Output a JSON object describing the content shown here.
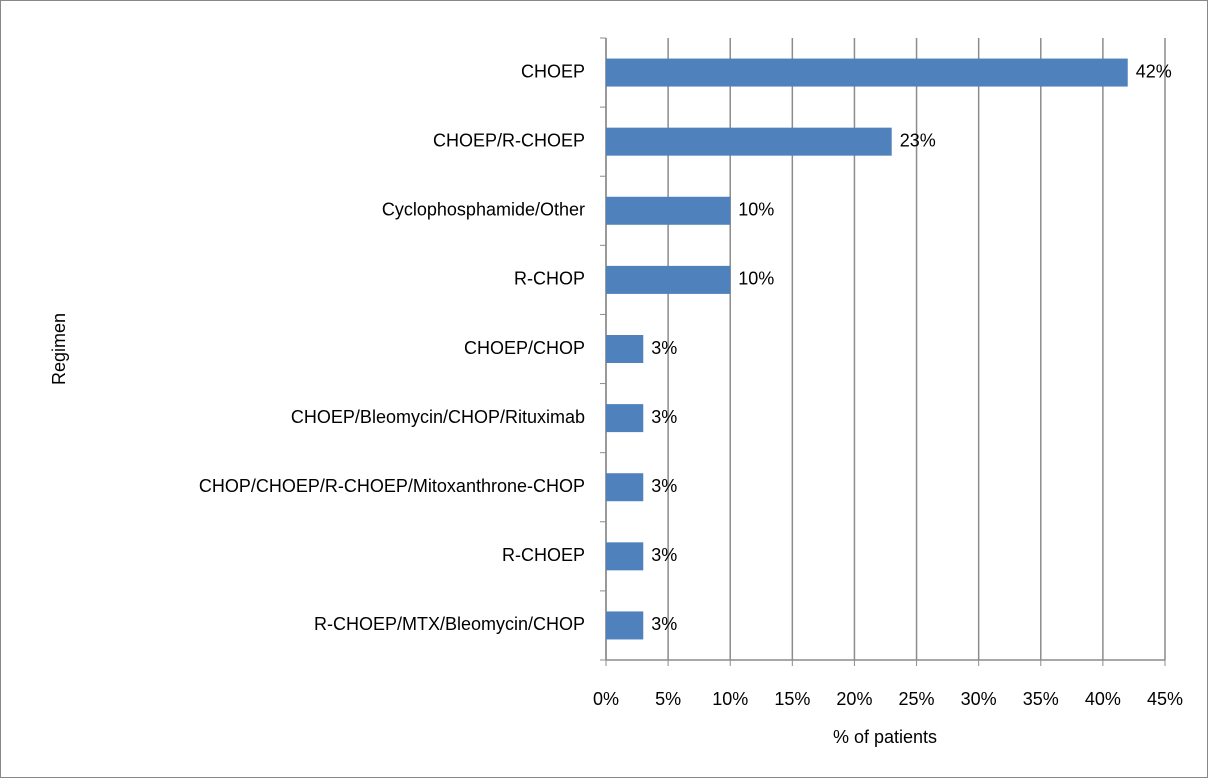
{
  "chart_data": {
    "type": "bar",
    "orientation": "horizontal",
    "categories": [
      "CHOEP",
      "CHOEP/R-CHOEP",
      "Cyclophosphamide/Other",
      "R-CHOP",
      "CHOEP/CHOP",
      "CHOEP/Bleomycin/CHOP/Rituximab",
      "CHOP/CHOEP/R-CHOEP/Mitoxanthrone-CHOP",
      "R-CHOEP",
      "R-CHOEP/MTX/Bleomycin/CHOP"
    ],
    "values": [
      42,
      23,
      10,
      10,
      3,
      3,
      3,
      3,
      3
    ],
    "value_labels": [
      "42%",
      "23%",
      "10%",
      "10%",
      "3%",
      "3%",
      "3%",
      "3%",
      "3%"
    ],
    "color": "#4f81bd",
    "xlim": [
      0,
      45
    ],
    "xticks": [
      {
        "value": 0,
        "label": "0%"
      },
      {
        "value": 5,
        "label": "5%"
      },
      {
        "value": 10,
        "label": "10%"
      },
      {
        "value": 15,
        "label": "15%"
      },
      {
        "value": 20,
        "label": "20%"
      },
      {
        "value": 25,
        "label": "25%"
      },
      {
        "value": 30,
        "label": "30%"
      },
      {
        "value": 35,
        "label": "35%"
      },
      {
        "value": 40,
        "label": "40%"
      },
      {
        "value": 45,
        "label": "45%"
      }
    ],
    "grid": true,
    "x_label": "% of patients",
    "y_label": "Regimen"
  }
}
